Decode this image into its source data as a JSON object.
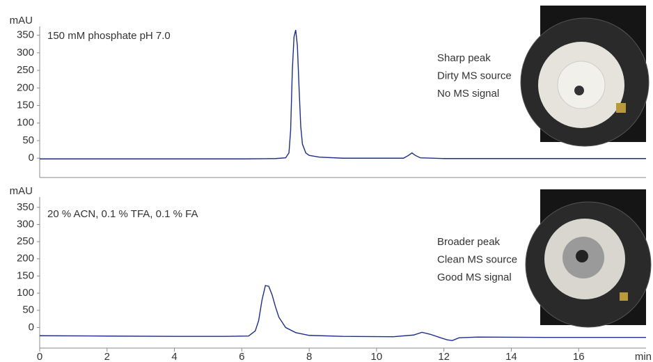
{
  "chart_data": [
    {
      "type": "line",
      "y_label": "mAU",
      "label": "150 mM phosphate pH 7.0",
      "notes": [
        "Sharp peak",
        "Dirty MS source",
        "No MS signal"
      ],
      "xlim": [
        0,
        18
      ],
      "ylim": [
        -55,
        375
      ],
      "yticks": [
        0,
        50,
        100,
        150,
        200,
        250,
        300,
        350
      ],
      "x": [
        0,
        2,
        4,
        6,
        7.0,
        7.3,
        7.4,
        7.45,
        7.5,
        7.55,
        7.6,
        7.65,
        7.7,
        7.75,
        7.8,
        7.9,
        8.0,
        8.3,
        9,
        10.8,
        10.95,
        11.05,
        11.15,
        11.3,
        12,
        14,
        16,
        18
      ],
      "series": [
        {
          "color": "#1c2d8c",
          "values": [
            -2,
            -2,
            -2,
            -2,
            -1,
            1,
            15,
            80,
            250,
            345,
            365,
            320,
            200,
            90,
            40,
            15,
            8,
            3,
            0,
            0,
            8,
            15,
            8,
            1,
            -1,
            -1,
            -1,
            -1
          ]
        }
      ]
    },
    {
      "type": "line",
      "y_label": "mAU",
      "x_label": "min",
      "label": "20 % ACN, 0.1 % TFA, 0.1 % FA",
      "notes": [
        "Broader peak",
        "Clean MS source",
        "Good MS signal"
      ],
      "xlim": [
        0,
        18
      ],
      "ylim": [
        -60,
        380
      ],
      "yticks": [
        0,
        50,
        100,
        150,
        200,
        250,
        300,
        350
      ],
      "xticks": [
        0,
        2,
        4,
        6,
        8,
        10,
        12,
        14,
        16
      ],
      "x": [
        0,
        2,
        4,
        5.5,
        6.2,
        6.4,
        6.5,
        6.6,
        6.7,
        6.8,
        6.9,
        7.0,
        7.1,
        7.3,
        7.6,
        8,
        9,
        10.5,
        11.1,
        11.35,
        11.6,
        11.9,
        12.1,
        12.25,
        12.45,
        13,
        15,
        18
      ],
      "series": [
        {
          "color": "#1c2d8c",
          "values": [
            -24,
            -25,
            -26,
            -26,
            -25,
            -10,
            20,
            80,
            122,
            120,
            95,
            60,
            30,
            0,
            -15,
            -23,
            -26,
            -27,
            -22,
            -14,
            -20,
            -30,
            -36,
            -38,
            -30,
            -28,
            -29,
            -29
          ]
        }
      ]
    }
  ]
}
